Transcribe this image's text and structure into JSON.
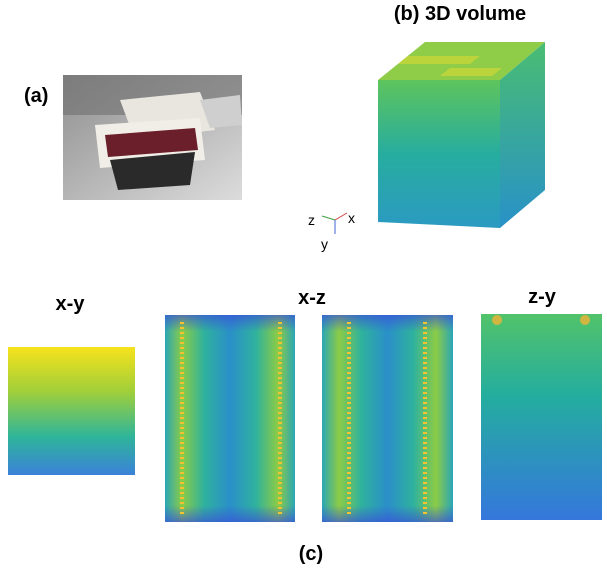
{
  "figure": {
    "panel_a": {
      "label": "(a)"
    },
    "panel_b": {
      "title": "(b) 3D volume",
      "axes": {
        "z": "z",
        "x": "x",
        "y": "y"
      }
    },
    "panel_c": {
      "label": "(c)",
      "views": [
        "x-y",
        "x-z",
        "z-y"
      ]
    }
  }
}
